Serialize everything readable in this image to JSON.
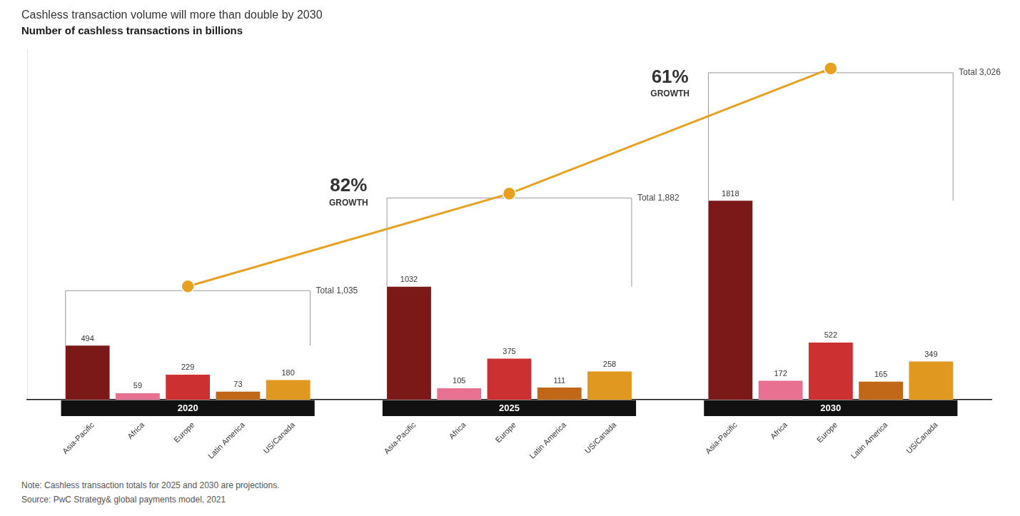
{
  "chart_data": {
    "type": "bar",
    "title": "Cashless transaction volume will more than double by 2030",
    "subtitle": "Number of cashless transactions in billions",
    "categories": [
      "2020",
      "2025",
      "2030"
    ],
    "series": [
      {
        "name": "Asia-Pacific",
        "color": "#7B1818",
        "values": [
          494,
          1032,
          1818
        ]
      },
      {
        "name": "Africa",
        "color": "#E87090",
        "values": [
          59,
          105,
          172
        ]
      },
      {
        "name": "Europe",
        "color": "#CC3030",
        "values": [
          229,
          375,
          522
        ]
      },
      {
        "name": "Latin America",
        "color": "#C06818",
        "values": [
          73,
          111,
          165
        ]
      },
      {
        "name": "US/Canada",
        "color": "#E09820",
        "values": [
          180,
          258,
          349
        ]
      },
      {
        "type": "line",
        "color": "#E8A020",
        "marker": "circle",
        "values": [
          1035,
          1882,
          3026
        ],
        "value_labels": [
          "Total 1,035",
          "Total 1,882",
          "Total 3,026"
        ]
      }
    ],
    "annotations": [
      {
        "label": "82%",
        "text": "GROWTH"
      },
      {
        "label": "61%",
        "text": "GROWTH"
      }
    ],
    "note": "Note: Cashless transaction totals for 2025 and 2030 are projections.",
    "source": "Source: PwC Strategy& global payments model, 2021",
    "ylim": [
      0,
      3200
    ],
    "grid": false,
    "legend": false,
    "data_labels": true,
    "tick_labels": "x"
  }
}
